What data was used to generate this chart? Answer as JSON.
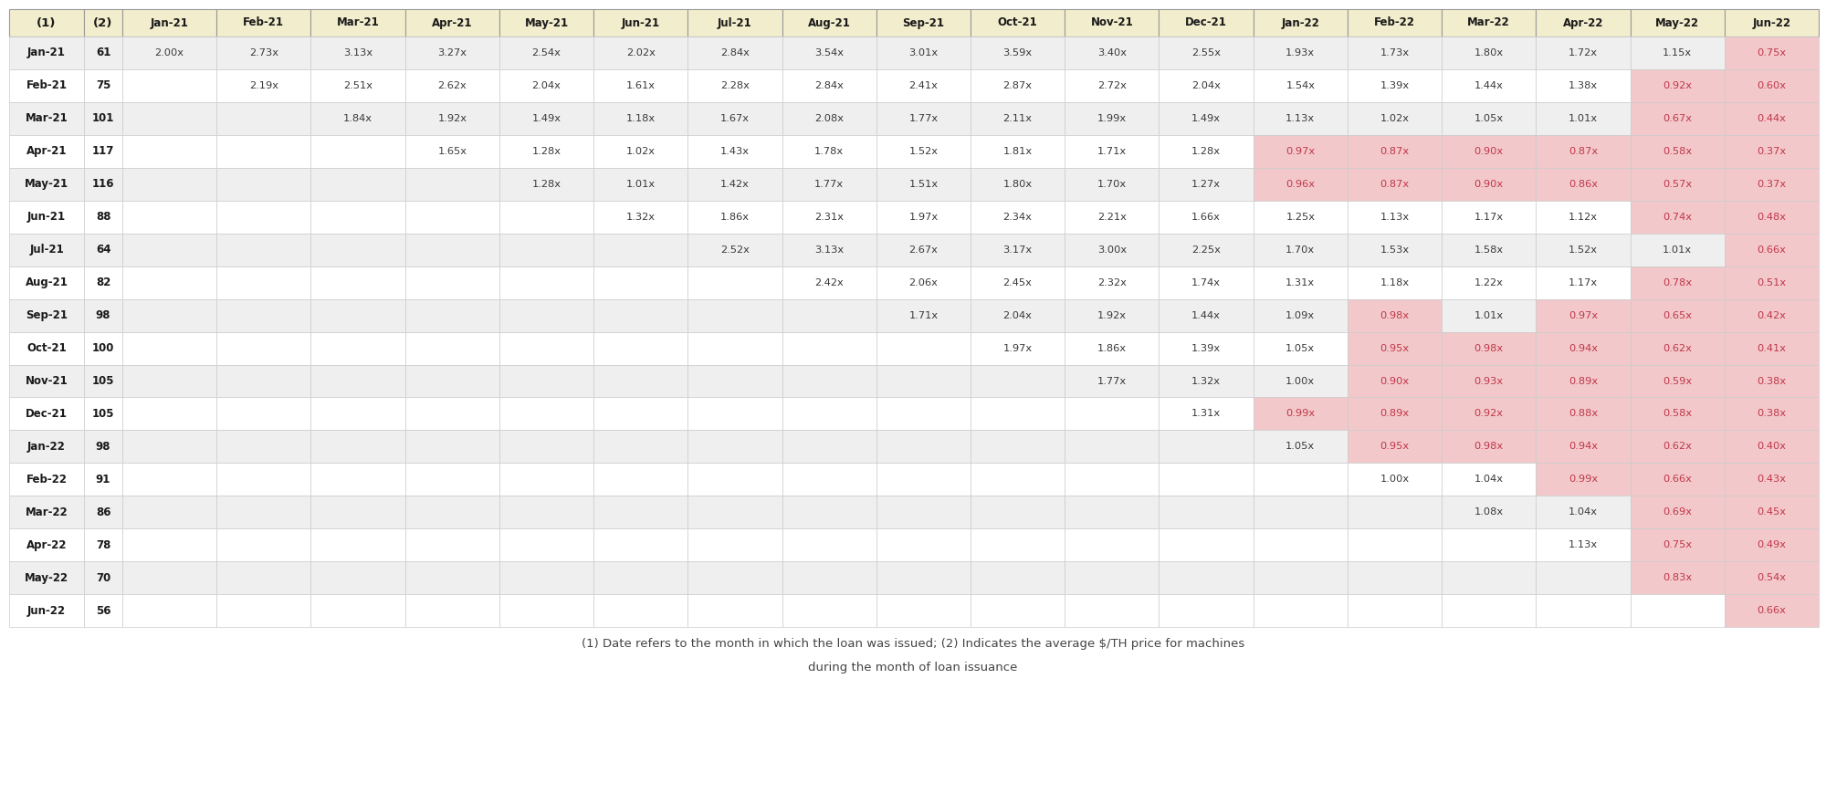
{
  "rows": [
    {
      "label": "Jan-21",
      "val2": 61
    },
    {
      "label": "Feb-21",
      "val2": 75
    },
    {
      "label": "Mar-21",
      "val2": 101
    },
    {
      "label": "Apr-21",
      "val2": 117
    },
    {
      "label": "May-21",
      "val2": 116
    },
    {
      "label": "Jun-21",
      "val2": 88
    },
    {
      "label": "Jul-21",
      "val2": 64
    },
    {
      "label": "Aug-21",
      "val2": 82
    },
    {
      "label": "Sep-21",
      "val2": 98
    },
    {
      "label": "Oct-21",
      "val2": 100
    },
    {
      "label": "Nov-21",
      "val2": 105
    },
    {
      "label": "Dec-21",
      "val2": 105
    },
    {
      "label": "Jan-22",
      "val2": 98
    },
    {
      "label": "Feb-22",
      "val2": 91
    },
    {
      "label": "Mar-22",
      "val2": 86
    },
    {
      "label": "Apr-22",
      "val2": 78
    },
    {
      "label": "May-22",
      "val2": 70
    },
    {
      "label": "Jun-22",
      "val2": 56
    }
  ],
  "col_headers": [
    "Jan-21",
    "Feb-21",
    "Mar-21",
    "Apr-21",
    "May-21",
    "Jun-21",
    "Jul-21",
    "Aug-21",
    "Sep-21",
    "Oct-21",
    "Nov-21",
    "Dec-21",
    "Jan-22",
    "Feb-22",
    "Mar-22",
    "Apr-22",
    "May-22",
    "Jun-22"
  ],
  "table_data": [
    [
      "2.00x",
      "2.73x",
      "3.13x",
      "3.27x",
      "2.54x",
      "2.02x",
      "2.84x",
      "3.54x",
      "3.01x",
      "3.59x",
      "3.40x",
      "2.55x",
      "1.93x",
      "1.73x",
      "1.80x",
      "1.72x",
      "1.15x",
      "0.75x"
    ],
    [
      null,
      "2.19x",
      "2.51x",
      "2.62x",
      "2.04x",
      "1.61x",
      "2.28x",
      "2.84x",
      "2.41x",
      "2.87x",
      "2.72x",
      "2.04x",
      "1.54x",
      "1.39x",
      "1.44x",
      "1.38x",
      "0.92x",
      "0.60x"
    ],
    [
      null,
      null,
      "1.84x",
      "1.92x",
      "1.49x",
      "1.18x",
      "1.67x",
      "2.08x",
      "1.77x",
      "2.11x",
      "1.99x",
      "1.49x",
      "1.13x",
      "1.02x",
      "1.05x",
      "1.01x",
      "0.67x",
      "0.44x"
    ],
    [
      null,
      null,
      null,
      "1.65x",
      "1.28x",
      "1.02x",
      "1.43x",
      "1.78x",
      "1.52x",
      "1.81x",
      "1.71x",
      "1.28x",
      "0.97x",
      "0.87x",
      "0.90x",
      "0.87x",
      "0.58x",
      "0.37x"
    ],
    [
      null,
      null,
      null,
      null,
      "1.28x",
      "1.01x",
      "1.42x",
      "1.77x",
      "1.51x",
      "1.80x",
      "1.70x",
      "1.27x",
      "0.96x",
      "0.87x",
      "0.90x",
      "0.86x",
      "0.57x",
      "0.37x"
    ],
    [
      null,
      null,
      null,
      null,
      null,
      "1.32x",
      "1.86x",
      "2.31x",
      "1.97x",
      "2.34x",
      "2.21x",
      "1.66x",
      "1.25x",
      "1.13x",
      "1.17x",
      "1.12x",
      "0.74x",
      "0.48x"
    ],
    [
      null,
      null,
      null,
      null,
      null,
      null,
      "2.52x",
      "3.13x",
      "2.67x",
      "3.17x",
      "3.00x",
      "2.25x",
      "1.70x",
      "1.53x",
      "1.58x",
      "1.52x",
      "1.01x",
      "0.66x"
    ],
    [
      null,
      null,
      null,
      null,
      null,
      null,
      null,
      "2.42x",
      "2.06x",
      "2.45x",
      "2.32x",
      "1.74x",
      "1.31x",
      "1.18x",
      "1.22x",
      "1.17x",
      "0.78x",
      "0.51x"
    ],
    [
      null,
      null,
      null,
      null,
      null,
      null,
      null,
      null,
      "1.71x",
      "2.04x",
      "1.92x",
      "1.44x",
      "1.09x",
      "0.98x",
      "1.01x",
      "0.97x",
      "0.65x",
      "0.42x"
    ],
    [
      null,
      null,
      null,
      null,
      null,
      null,
      null,
      null,
      null,
      "1.97x",
      "1.86x",
      "1.39x",
      "1.05x",
      "0.95x",
      "0.98x",
      "0.94x",
      "0.62x",
      "0.41x"
    ],
    [
      null,
      null,
      null,
      null,
      null,
      null,
      null,
      null,
      null,
      null,
      "1.77x",
      "1.32x",
      "1.00x",
      "0.90x",
      "0.93x",
      "0.89x",
      "0.59x",
      "0.38x"
    ],
    [
      null,
      null,
      null,
      null,
      null,
      null,
      null,
      null,
      null,
      null,
      null,
      "1.31x",
      "0.99x",
      "0.89x",
      "0.92x",
      "0.88x",
      "0.58x",
      "0.38x"
    ],
    [
      null,
      null,
      null,
      null,
      null,
      null,
      null,
      null,
      null,
      null,
      null,
      null,
      "1.05x",
      "0.95x",
      "0.98x",
      "0.94x",
      "0.62x",
      "0.40x"
    ],
    [
      null,
      null,
      null,
      null,
      null,
      null,
      null,
      null,
      null,
      null,
      null,
      null,
      null,
      "1.00x",
      "1.04x",
      "0.99x",
      "0.66x",
      "0.43x"
    ],
    [
      null,
      null,
      null,
      null,
      null,
      null,
      null,
      null,
      null,
      null,
      null,
      null,
      null,
      null,
      "1.08x",
      "1.04x",
      "0.69x",
      "0.45x"
    ],
    [
      null,
      null,
      null,
      null,
      null,
      null,
      null,
      null,
      null,
      null,
      null,
      null,
      null,
      null,
      null,
      "1.13x",
      "0.75x",
      "0.49x"
    ],
    [
      null,
      null,
      null,
      null,
      null,
      null,
      null,
      null,
      null,
      null,
      null,
      null,
      null,
      null,
      null,
      null,
      "0.83x",
      "0.54x"
    ],
    [
      null,
      null,
      null,
      null,
      null,
      null,
      null,
      null,
      null,
      null,
      null,
      null,
      null,
      null,
      null,
      null,
      null,
      "0.66x"
    ]
  ],
  "footnote_line1": "(1) Date refers to the month in which the loan was issued; (2) Indicates the average $/TH price for machines",
  "footnote_line2": "during the month of loan issuance",
  "header_bg": "#f2edcc",
  "row_bg_odd": "#efefef",
  "row_bg_even": "#ffffff",
  "col1_header": "(1)",
  "col2_header": "(2)",
  "pink_threshold": 1.0,
  "pink_color": "#f2c8ca",
  "pink_text_color": "#c0384a",
  "normal_text_color": "#3a3a3a",
  "header_text_color": "#1a1a1a",
  "fig_width": 20.0,
  "fig_height": 8.81,
  "dpi": 100
}
